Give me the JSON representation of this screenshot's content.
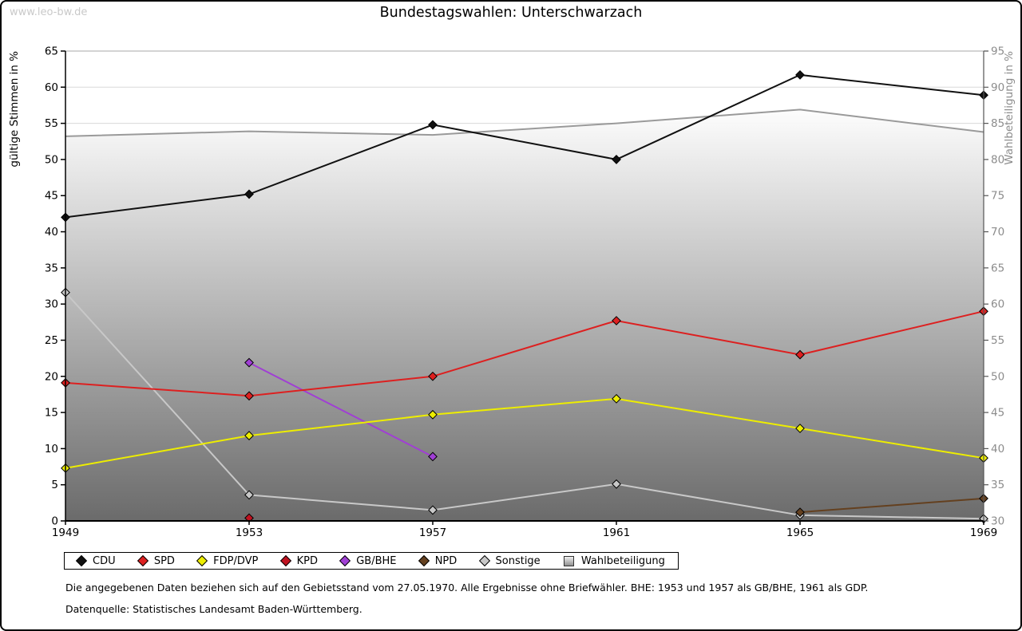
{
  "watermark": "www.leo-bw.de",
  "title": "Bundestagswahlen: Unterschwarzach",
  "footnotes": {
    "line1": "Die angegebenen Daten beziehen sich auf den Gebietsstand vom 27.05.1970. Alle Ergebnisse ohne Briefwähler. BHE: 1953 und 1957 als GB/BHE, 1961 als GDP.",
    "line2": "Datenquelle: Statistisches Landesamt Baden-Württemberg."
  },
  "chart_data": {
    "type": "line",
    "x": [
      1949,
      1953,
      1957,
      1961,
      1965,
      1969
    ],
    "y_left": {
      "label": "gültige Stimmen in %",
      "min": 0,
      "max": 65,
      "step": 5
    },
    "y_right": {
      "label": "Wahlbeteiligung in %",
      "min": 30,
      "max": 95,
      "step": 5
    },
    "grid": true,
    "legend_position": "bottom",
    "series": [
      {
        "name": "CDU",
        "color": "#111111",
        "marker": "diamond",
        "axis": "left",
        "values": [
          42.0,
          45.2,
          54.8,
          50.0,
          61.7,
          58.9
        ]
      },
      {
        "name": "SPD",
        "color": "#dd2020",
        "marker": "diamond",
        "axis": "left",
        "values": [
          19.1,
          17.3,
          20.0,
          27.7,
          23.0,
          29.0
        ]
      },
      {
        "name": "FDP/DVP",
        "color": "#eded00",
        "marker": "diamond",
        "axis": "left",
        "values": [
          7.3,
          11.8,
          14.7,
          16.9,
          12.8,
          8.7
        ]
      },
      {
        "name": "KPD",
        "color": "#c01220",
        "marker": "diamond",
        "axis": "left",
        "values": [
          null,
          0.4,
          null,
          null,
          null,
          null
        ]
      },
      {
        "name": "GB/BHE",
        "color": "#a03fd4",
        "marker": "diamond",
        "axis": "left",
        "values": [
          null,
          21.9,
          8.9,
          null,
          null,
          null
        ]
      },
      {
        "name": "NPD",
        "color": "#64401f",
        "marker": "diamond",
        "axis": "left",
        "values": [
          null,
          null,
          null,
          null,
          1.2,
          3.1
        ]
      },
      {
        "name": "Sonstige",
        "color": "#c8c8c8",
        "marker": "diamond",
        "axis": "left",
        "values": [
          31.6,
          3.6,
          1.5,
          5.1,
          0.8,
          0.3
        ]
      },
      {
        "name": "Wahlbeteiligung",
        "color": "#9a9a9a",
        "marker": "square",
        "axis": "right",
        "type": "area",
        "values": [
          83.2,
          83.9,
          83.4,
          85.0,
          86.9,
          83.8
        ],
        "area_gradient": {
          "top": "#fdfdfd",
          "bottom": "#666666"
        }
      }
    ]
  },
  "colors": {
    "grid": "#d9d9d9",
    "plot_frame_top": "#aaaaaa",
    "axis_left": "#000000",
    "axis_right": "#555555",
    "right_label": "#8c8c8c"
  }
}
